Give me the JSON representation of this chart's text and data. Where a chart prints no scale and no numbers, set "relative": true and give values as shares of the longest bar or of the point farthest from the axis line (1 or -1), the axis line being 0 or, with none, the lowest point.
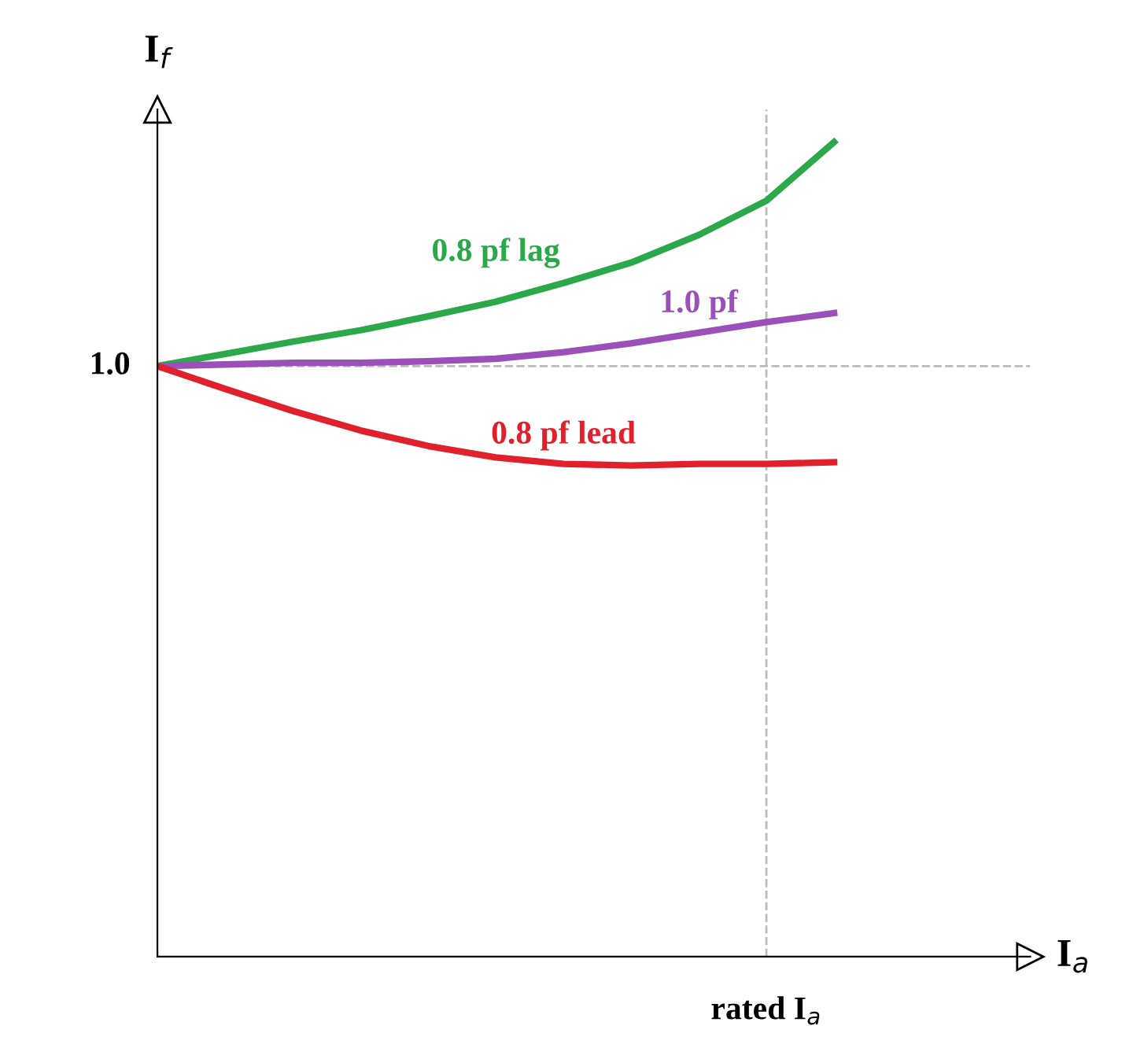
{
  "chart_data": {
    "type": "line",
    "relative": true,
    "xlabel": "I$_{a}$",
    "ylabel": "I$_{f}$",
    "categories": [
      null,
      null,
      null,
      null,
      null,
      null,
      null,
      null,
      null,
      null,
      null
    ],
    "series": [
      {
        "name": "0.8 pf lag",
        "color": "#2aa84a",
        "values": [
          0.725,
          0.74,
          0.755,
          0.769,
          0.786,
          0.804,
          0.827,
          0.852,
          0.886,
          0.928,
          1.0
        ]
      },
      {
        "name": "1.0 pf",
        "color": "#9b4fb8",
        "values": [
          0.725,
          0.727,
          0.729,
          0.729,
          0.731,
          0.734,
          0.742,
          0.753,
          0.766,
          0.779,
          0.79
        ]
      },
      {
        "name": "0.8 pf lead",
        "color": "#e0202a",
        "values": [
          0.725,
          0.697,
          0.67,
          0.646,
          0.627,
          0.613,
          0.605,
          0.603,
          0.605,
          0.605,
          0.607
        ]
      }
    ],
    "ref_lines": [
      {
        "axis": "y",
        "value": 0.725,
        "color": "#bbbbbb",
        "line_style": "dashed"
      }
    ],
    "annotations": [
      "1.0",
      "rated I$_{a}$"
    ],
    "grid": false,
    "marker": "none",
    "line_style": "solid"
  }
}
